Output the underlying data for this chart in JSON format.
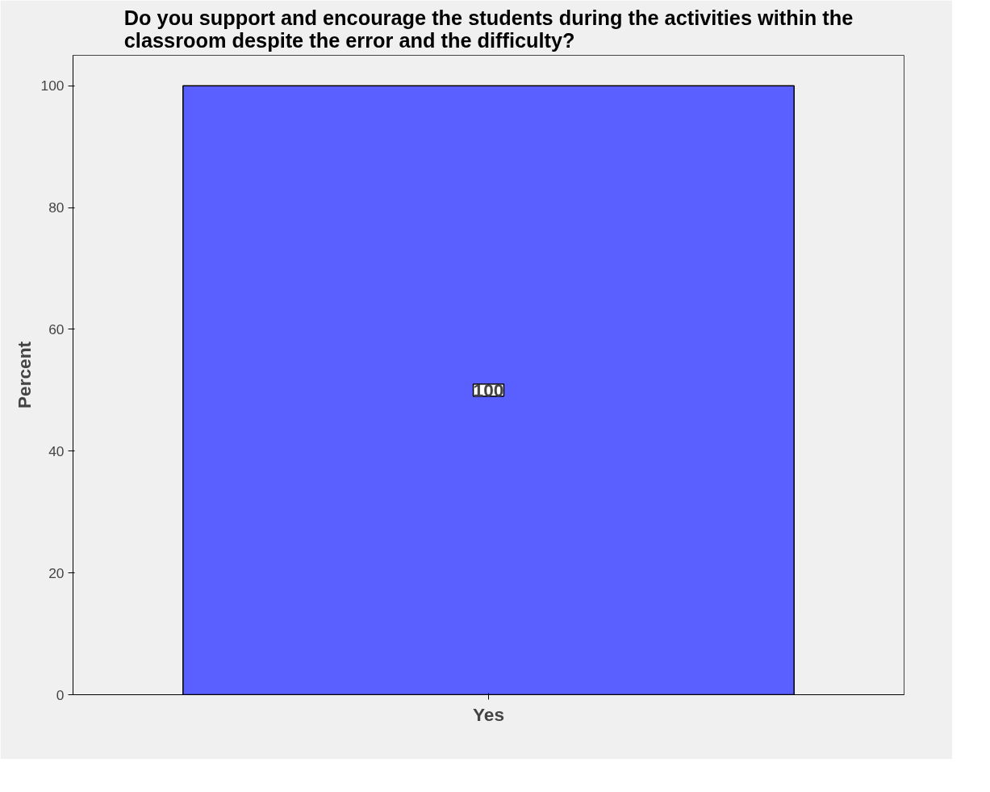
{
  "chart_data": {
    "type": "bar",
    "title": "Do you support and encourage the students during the activities within the classroom despite the error and the difficulty?",
    "ylabel": "Percent",
    "categories": [
      "Yes"
    ],
    "values": [
      100
    ],
    "color": "#5a5fff",
    "ylim": [
      0,
      105
    ],
    "yticks": [
      0,
      20,
      40,
      60,
      80,
      100
    ],
    "data_labels": true,
    "grid": false
  }
}
